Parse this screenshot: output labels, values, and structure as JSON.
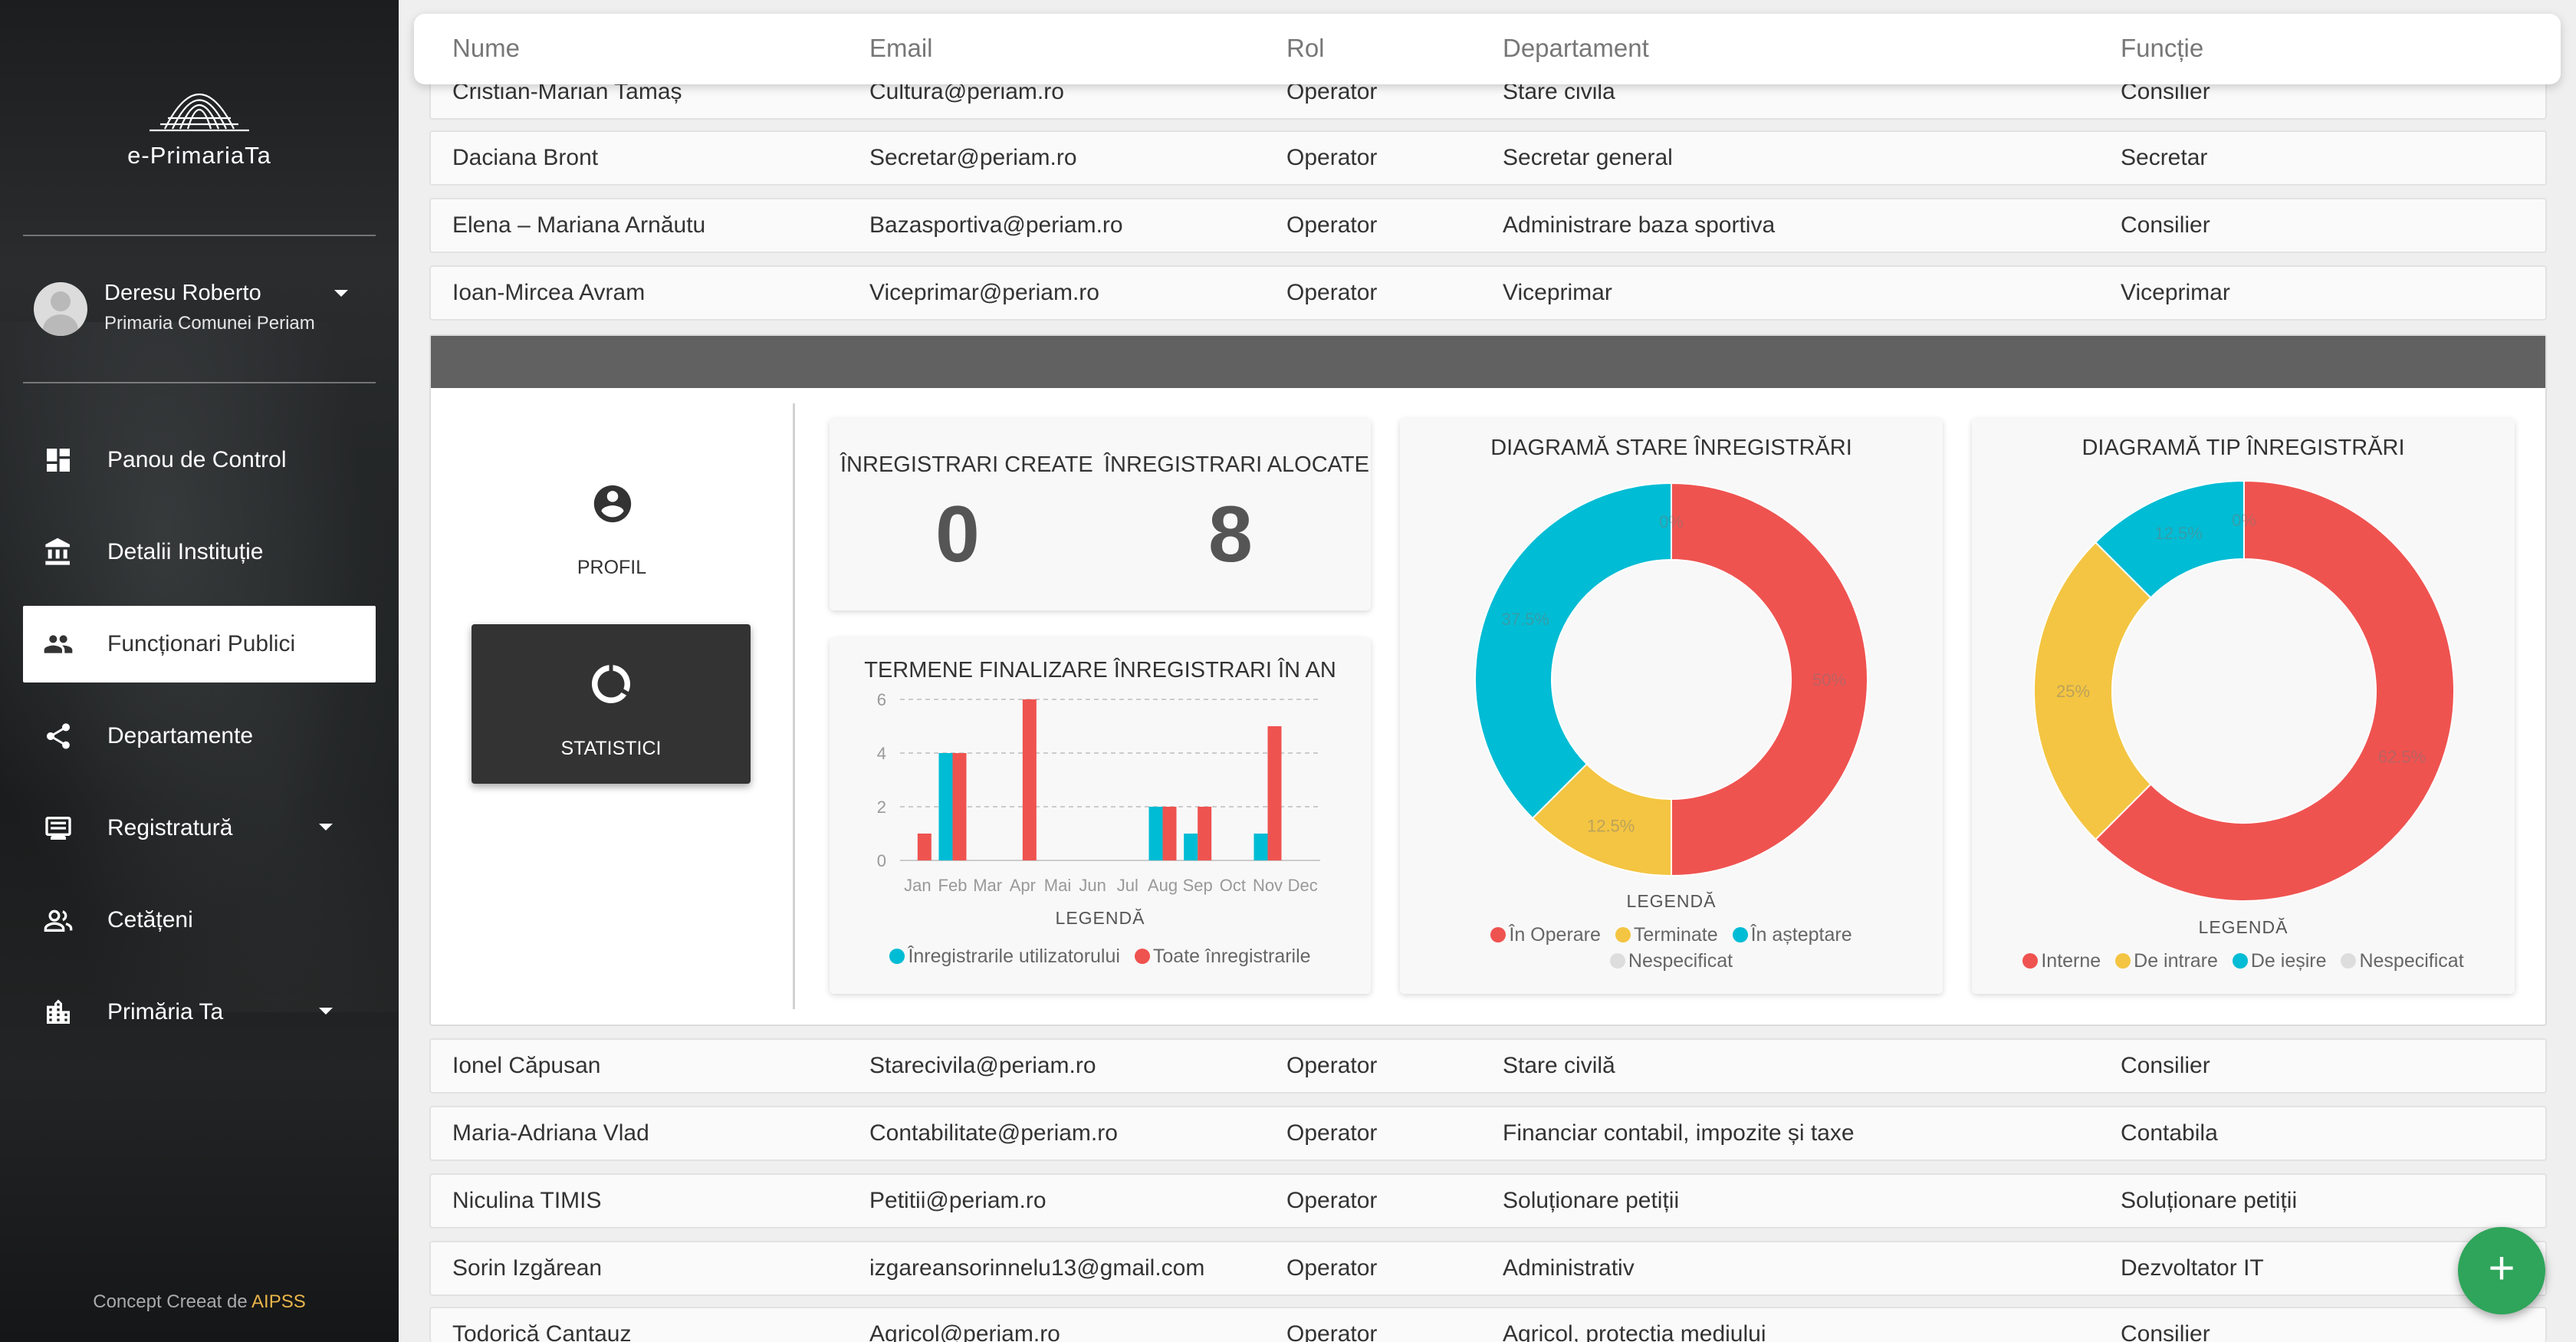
{
  "sidebar": {
    "app_name": "e-PrimariaTa",
    "user": {
      "name": "Deresu Roberto",
      "org": "Primaria Comunei Periam"
    },
    "nav": [
      {
        "label": "Panou de Control",
        "icon": "dashboard-icon"
      },
      {
        "label": "Detalii Instituție",
        "icon": "institution-icon"
      },
      {
        "label": "Funcționari Publici",
        "icon": "people-icon"
      },
      {
        "label": "Departamente",
        "icon": "share-icon"
      },
      {
        "label": "Registratură",
        "icon": "register-icon"
      },
      {
        "label": "Cetățeni",
        "icon": "citizens-icon"
      },
      {
        "label": "Primăria Ta",
        "icon": "building-icon"
      }
    ],
    "credit_prefix": "Concept Creeat de",
    "credit_brand": "AIPSS"
  },
  "table": {
    "headers": [
      "Nume",
      "Email",
      "Rol",
      "Departament",
      "Funcție"
    ],
    "rows_top": [
      {
        "name": "Cristian-Marian Tamaș",
        "email": "Cultura@periam.ro",
        "role": "Operator",
        "dept": "Stare civila",
        "func": "Consilier"
      },
      {
        "name": "Daciana Bront",
        "email": "Secretar@periam.ro",
        "role": "Operator",
        "dept": "Secretar general",
        "func": "Secretar"
      },
      {
        "name": "Elena – Mariana Arnăutu",
        "email": "Bazasportiva@periam.ro",
        "role": "Operator",
        "dept": "Administrare baza sportiva",
        "func": "Consilier"
      },
      {
        "name": "Ioan-Mircea Avram",
        "email": "Viceprimar@periam.ro",
        "role": "Operator",
        "dept": "Viceprimar",
        "func": "Viceprimar"
      }
    ],
    "rows_bottom": [
      {
        "name": "Ionel Căpusan",
        "email": "Starecivila@periam.ro",
        "role": "Operator",
        "dept": "Stare civilă",
        "func": "Consilier"
      },
      {
        "name": "Maria-Adriana Vlad",
        "email": "Contabilitate@periam.ro",
        "role": "Operator",
        "dept": "Financiar contabil, impozite și taxe",
        "func": "Contabila"
      },
      {
        "name": "Niculina TIMIS",
        "email": "Petitii@periam.ro",
        "role": "Operator",
        "dept": "Soluționare petiții",
        "func": "Soluționare petiții"
      },
      {
        "name": "Sorin Izgărean",
        "email": "izgareansorinnelu13@gmail.com",
        "role": "Operator",
        "dept": "Administrativ",
        "func": "Dezvoltator IT"
      },
      {
        "name": "Todorică Cantauz",
        "email": "Agricol@periam.ro",
        "role": "Operator",
        "dept": "Agricol, protecția mediului",
        "func": "Consilier"
      }
    ]
  },
  "panel": {
    "profil_label": "PROFIL",
    "statistici_label": "STATISTICI",
    "kpi": [
      {
        "label": "ÎNREGISTRARI CREATE",
        "value": "0"
      },
      {
        "label": "ÎNREGISTRARI ALOCATE",
        "value": "8"
      }
    ]
  },
  "chart_data": [
    {
      "type": "bar",
      "title": "TERMENE FINALIZARE ÎNREGISTRARI ÎN AN",
      "categories": [
        "Jan",
        "Feb",
        "Mar",
        "Apr",
        "Mai",
        "Jun",
        "Jul",
        "Aug",
        "Sep",
        "Oct",
        "Nov",
        "Dec"
      ],
      "series": [
        {
          "name": "Înregistrarile utilizatorului",
          "color": "#00bcd4",
          "values": [
            0,
            4,
            0,
            0,
            0,
            0,
            0,
            2,
            1,
            0,
            1,
            0
          ]
        },
        {
          "name": "Toate înregistrarile",
          "color": "#ef5350",
          "values": [
            1,
            4,
            0,
            6,
            0,
            0,
            0,
            2,
            2,
            0,
            5,
            0
          ]
        }
      ],
      "yticks": [
        0,
        2,
        4,
        6
      ],
      "ylim": [
        0,
        6
      ],
      "legend_title": "LEGENDĂ",
      "grid": true
    },
    {
      "type": "pie",
      "title": "DIAGRAMĂ STARE ÎNREGISTRĂRI",
      "labels": [
        "În Operare",
        "Terminate",
        "În așteptare",
        "Nespecificat"
      ],
      "values": [
        50,
        12.5,
        37.5,
        0
      ],
      "value_labels": [
        "50%",
        "12.5%",
        "37.5%",
        "0%"
      ],
      "colors": [
        "#ef5350",
        "#f4c542",
        "#00bcd4",
        "#dddddd"
      ],
      "legend_title": "LEGENDĂ"
    },
    {
      "type": "pie",
      "title": "DIAGRAMĂ TIP ÎNREGISTRĂRI",
      "labels": [
        "Interne",
        "De intrare",
        "De ieșire",
        "Nespecificat"
      ],
      "values": [
        62.5,
        25,
        12.5,
        0
      ],
      "value_labels": [
        "62.5%",
        "25%",
        "12.5%",
        "0%"
      ],
      "colors": [
        "#ef5350",
        "#f4c542",
        "#00bcd4",
        "#dddddd"
      ],
      "legend_title": "LEGENDĂ"
    }
  ],
  "fab": {
    "label": "+"
  }
}
